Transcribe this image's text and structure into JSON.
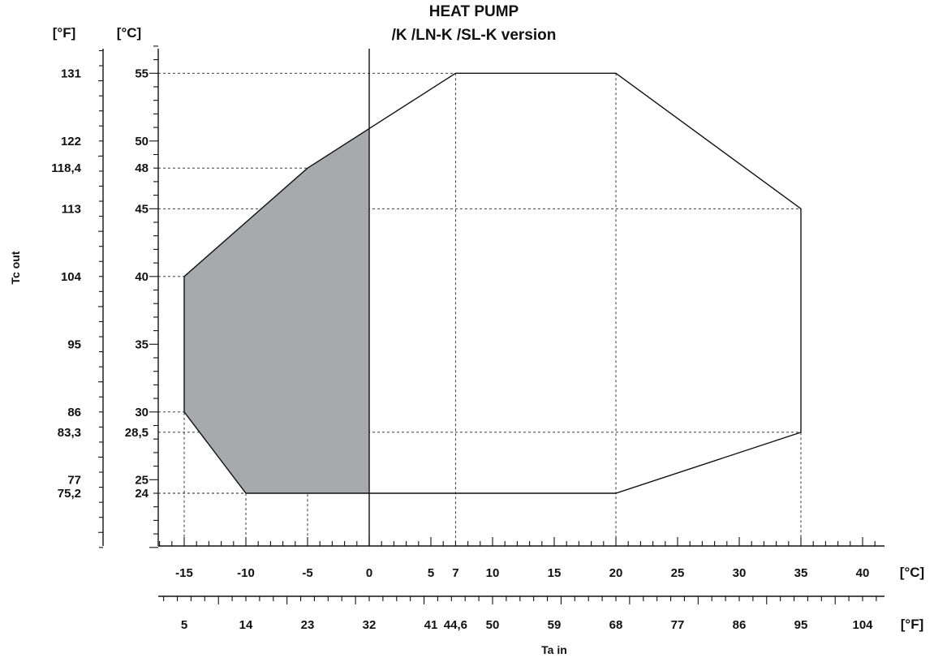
{
  "chart_data": {
    "type": "area",
    "title": [
      "HEAT PUMP",
      "/K  /LN-K  /SL-K  version"
    ],
    "xlabel": "Ta in",
    "ylabel": "Tc out",
    "x_unit_primary": "[°C]",
    "x_unit_secondary": "[°F]",
    "y_unit_primary": "[°C]",
    "y_unit_secondary": "[°F]",
    "xlim": [
      -17,
      41.5
    ],
    "ylim": [
      19.6,
      57.5
    ],
    "x_ticks_c": [
      -15,
      -10,
      -5,
      0,
      5,
      7,
      10,
      15,
      20,
      25,
      30,
      35,
      40
    ],
    "x_ticks_f": [
      {
        "c": -15,
        "label": "5"
      },
      {
        "c": -10,
        "label": "14"
      },
      {
        "c": -5,
        "label": "23"
      },
      {
        "c": 0,
        "label": "32"
      },
      {
        "c": 5,
        "label": "41"
      },
      {
        "c": 7,
        "label": "44,6"
      },
      {
        "c": 10,
        "label": "50"
      },
      {
        "c": 15,
        "label": "59"
      },
      {
        "c": 20,
        "label": "68"
      },
      {
        "c": 25,
        "label": "77"
      },
      {
        "c": 30,
        "label": "86"
      },
      {
        "c": 35,
        "label": "95"
      },
      {
        "c": 40,
        "label": "104"
      }
    ],
    "y_ticks": [
      {
        "c": 55,
        "c_label": "55",
        "f_label": "131"
      },
      {
        "c": 50,
        "c_label": "50",
        "f_label": "122"
      },
      {
        "c": 48,
        "c_label": "48",
        "f_label": "118,4"
      },
      {
        "c": 45,
        "c_label": "45",
        "f_label": "113"
      },
      {
        "c": 40,
        "c_label": "40",
        "f_label": "104"
      },
      {
        "c": 35,
        "c_label": "35",
        "f_label": "95"
      },
      {
        "c": 30,
        "c_label": "30",
        "f_label": "86"
      },
      {
        "c": 28.5,
        "c_label": "28,5",
        "f_label": "83,3"
      },
      {
        "c": 25,
        "c_label": "25",
        "f_label": "77"
      },
      {
        "c": 24,
        "c_label": "24",
        "f_label": "75,2"
      }
    ],
    "envelope": [
      {
        "x": -15,
        "y": 40
      },
      {
        "x": -5,
        "y": 48
      },
      {
        "x": 7,
        "y": 55
      },
      {
        "x": 20,
        "y": 55
      },
      {
        "x": 35,
        "y": 45
      },
      {
        "x": 35,
        "y": 28.5
      },
      {
        "x": 20,
        "y": 24
      },
      {
        "x": -10,
        "y": 24
      },
      {
        "x": -15,
        "y": 30
      }
    ],
    "shaded_region": [
      {
        "x": -15,
        "y": 40
      },
      {
        "x": -5,
        "y": 48
      },
      {
        "x": 0,
        "y": 50.9
      },
      {
        "x": 0,
        "y": 24
      },
      {
        "x": -10,
        "y": 24
      },
      {
        "x": -15,
        "y": 30
      }
    ],
    "shade_color": "#a8a9ad",
    "line_color": "#111111",
    "reference_vertical_x": 0,
    "dashed_guides": {
      "horizontal": [
        {
          "y": 55,
          "x_to": 7
        },
        {
          "y": 48,
          "x_to": -5
        },
        {
          "y": 45,
          "x_to": 35
        },
        {
          "y": 40,
          "x_to": -15
        },
        {
          "y": 30,
          "x_to": -15
        },
        {
          "y": 28.5,
          "x_to": 35
        },
        {
          "y": 24,
          "x_to": -10
        }
      ],
      "vertical": [
        {
          "x": -15,
          "y_from": 40
        },
        {
          "x": -10,
          "y_from": 24
        },
        {
          "x": -5,
          "y_from": 48
        },
        {
          "x": 7,
          "y_from": 55
        },
        {
          "x": 20,
          "y_from": 55
        },
        {
          "x": 35,
          "y_from": 45
        }
      ]
    }
  }
}
